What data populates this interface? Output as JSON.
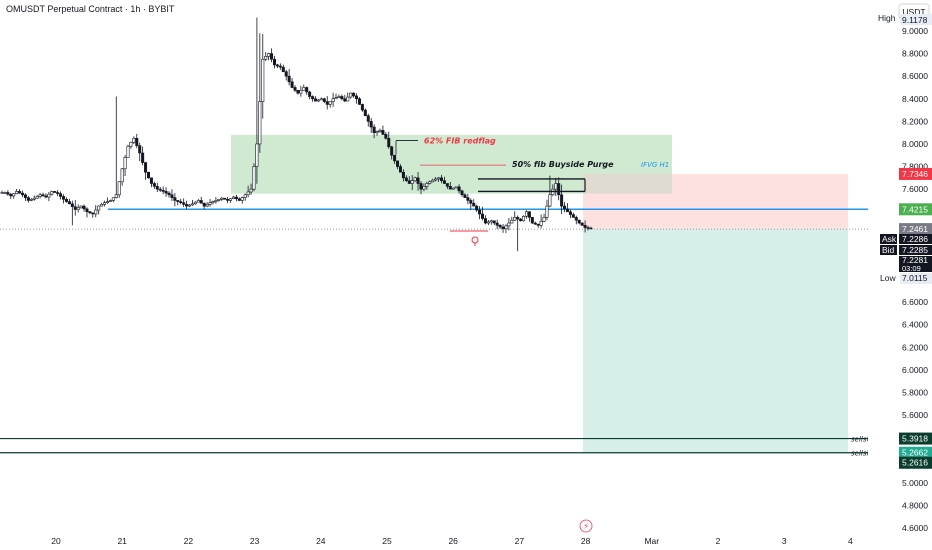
{
  "header": {
    "title": "OMUSDT Perpetual Contract · 1h · BYBIT",
    "currency_button": "USDT"
  },
  "colors": {
    "candle_up": "#131722",
    "candle_down": "#131722",
    "zone_green": "#c8e6c9",
    "zone_red": "#fddede",
    "zone_teal": "#d5eee8",
    "blue_line": "#2196f3",
    "red_label": "#f23645",
    "green_label": "#22ab94",
    "dark_label": "#131722",
    "grey_label": "#787b86",
    "fib_label_red": "#f23645"
  },
  "annotations": {
    "fib62": "62% FIB redflag",
    "fib50": "50% fib Buyside Purge",
    "ifvg": "IFVG H1",
    "sellside1": "sellside liq",
    "sellside2": "sellside liq"
  },
  "price_labels": {
    "high": "High",
    "high_value": "9.1178",
    "low": "Low",
    "low_value": "7.0115",
    "target_red": "7.7346",
    "blue": "7.4215",
    "last_grey": "7.2461",
    "ask": "Ask",
    "ask_value": "7.2286",
    "bid": "Bid",
    "bid_value": "7.2285",
    "current": "7.2281",
    "countdown": "03:09",
    "ss1": "5.3918",
    "ss2": "5.2662",
    "ss3": "5.2616"
  },
  "chart_data": {
    "type": "candlestick",
    "title": "OMUSDT Perpetual Contract · 1h · BYBIT",
    "y_ticks": [
      "9.0000",
      "8.8000",
      "8.6000",
      "8.4000",
      "8.2000",
      "8.0000",
      "7.8000",
      "7.6000",
      "6.6000",
      "6.4000",
      "6.2000",
      "6.0000",
      "5.8000",
      "5.6000",
      "5.0000",
      "4.8000",
      "4.6000"
    ],
    "x_ticks": [
      "20",
      "21",
      "22",
      "23",
      "24",
      "25",
      "26",
      "27",
      "28",
      "Mar",
      "2",
      "3",
      "4"
    ],
    "ylim": [
      4.55,
      9.25
    ],
    "close_series": [
      7.57,
      7.54,
      7.58,
      7.55,
      7.5,
      7.52,
      7.55,
      7.53,
      7.58,
      7.56,
      7.51,
      7.47,
      7.42,
      7.45,
      7.4,
      7.38,
      7.45,
      7.48,
      7.5,
      7.55,
      7.78,
      7.98,
      8.05,
      7.92,
      7.75,
      7.65,
      7.6,
      7.58,
      7.55,
      7.5,
      7.48,
      7.45,
      7.47,
      7.5,
      7.45,
      7.48,
      7.5,
      7.52,
      7.5,
      7.53,
      7.5,
      7.55,
      7.6,
      8.0,
      8.75,
      8.8,
      8.7,
      8.68,
      8.6,
      8.5,
      8.45,
      8.5,
      8.42,
      8.38,
      8.4,
      8.35,
      8.4,
      8.42,
      8.38,
      8.45,
      8.4,
      8.3,
      8.2,
      8.1,
      8.12,
      8.05,
      7.9,
      7.8,
      7.7,
      7.65,
      7.7,
      7.6,
      7.65,
      7.68,
      7.7,
      7.65,
      7.6,
      7.62,
      7.55,
      7.5,
      7.45,
      7.38,
      7.3,
      7.32,
      7.28,
      7.25,
      7.3,
      7.35,
      7.32,
      7.4,
      7.3,
      7.28,
      7.35,
      7.55,
      7.65,
      7.45,
      7.4,
      7.35,
      7.3,
      7.26,
      7.25
    ],
    "series": [
      {
        "name": "ohlc",
        "note": "hourly candles, approximate"
      }
    ],
    "zones": [
      {
        "name": "green-zone",
        "low": 7.56,
        "high": 8.08
      },
      {
        "name": "red-zone",
        "low": 7.2461,
        "high": 7.7346
      },
      {
        "name": "teal-zone",
        "low": 5.2662,
        "high": 7.2461
      }
    ],
    "levels": {
      "blue_line": 7.4215,
      "sellside_1": 5.3918,
      "sellside_2": 5.2662,
      "fib62": 8.03,
      "fib50": 7.83,
      "box_top": 7.69,
      "box_bottom": 7.58
    }
  }
}
